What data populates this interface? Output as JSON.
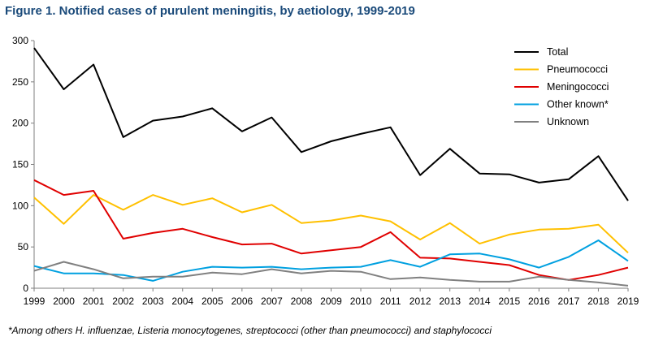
{
  "figure": {
    "title": "Figure 1. Notified cases of purulent meningitis, by aetiology, 1999-2019",
    "footnote": "*Among others H. influenzae, Listeria monocytogenes, streptococci (other than pneumococci) and staphylococci"
  },
  "chart_data": {
    "type": "line",
    "title": "Figure 1. Notified cases of purulent meningitis, by aetiology, 1999-2019",
    "xlabel": "",
    "ylabel": "",
    "x": [
      "1999",
      "2000",
      "2001",
      "2002",
      "2003",
      "2004",
      "2005",
      "2006",
      "2007",
      "2008",
      "2009",
      "2010",
      "2011",
      "2012",
      "2013",
      "2014",
      "2015",
      "2016",
      "2017",
      "2018",
      "2019"
    ],
    "ylim": [
      0,
      300
    ],
    "yticks": [
      "0",
      "50",
      "100",
      "150",
      "200",
      "250",
      "300"
    ],
    "grid": false,
    "legend_position": "top-right",
    "series": [
      {
        "name": "Total",
        "color": "#000000",
        "values": [
          291,
          241,
          271,
          183,
          203,
          208,
          218,
          190,
          207,
          165,
          178,
          187,
          195,
          137,
          169,
          139,
          138,
          128,
          132,
          160,
          106
        ]
      },
      {
        "name": "Pneumococci",
        "color": "#ffc000",
        "values": [
          110,
          78,
          113,
          95,
          113,
          101,
          109,
          92,
          101,
          79,
          82,
          88,
          81,
          59,
          79,
          54,
          65,
          71,
          72,
          77,
          43
        ]
      },
      {
        "name": "Meningococci",
        "color": "#e00000",
        "values": [
          131,
          113,
          118,
          60,
          67,
          72,
          62,
          53,
          54,
          42,
          46,
          50,
          68,
          37,
          36,
          32,
          28,
          16,
          10,
          16,
          25
        ]
      },
      {
        "name": "Other known*",
        "color": "#00a0e0",
        "values": [
          27,
          18,
          18,
          16,
          9,
          20,
          26,
          25,
          26,
          23,
          25,
          26,
          34,
          26,
          41,
          42,
          35,
          25,
          38,
          58,
          33
        ]
      },
      {
        "name": "Unknown",
        "color": "#808080",
        "values": [
          21,
          32,
          23,
          12,
          14,
          14,
          19,
          17,
          23,
          18,
          21,
          20,
          11,
          13,
          10,
          8,
          8,
          14,
          10,
          7,
          3
        ]
      }
    ]
  }
}
